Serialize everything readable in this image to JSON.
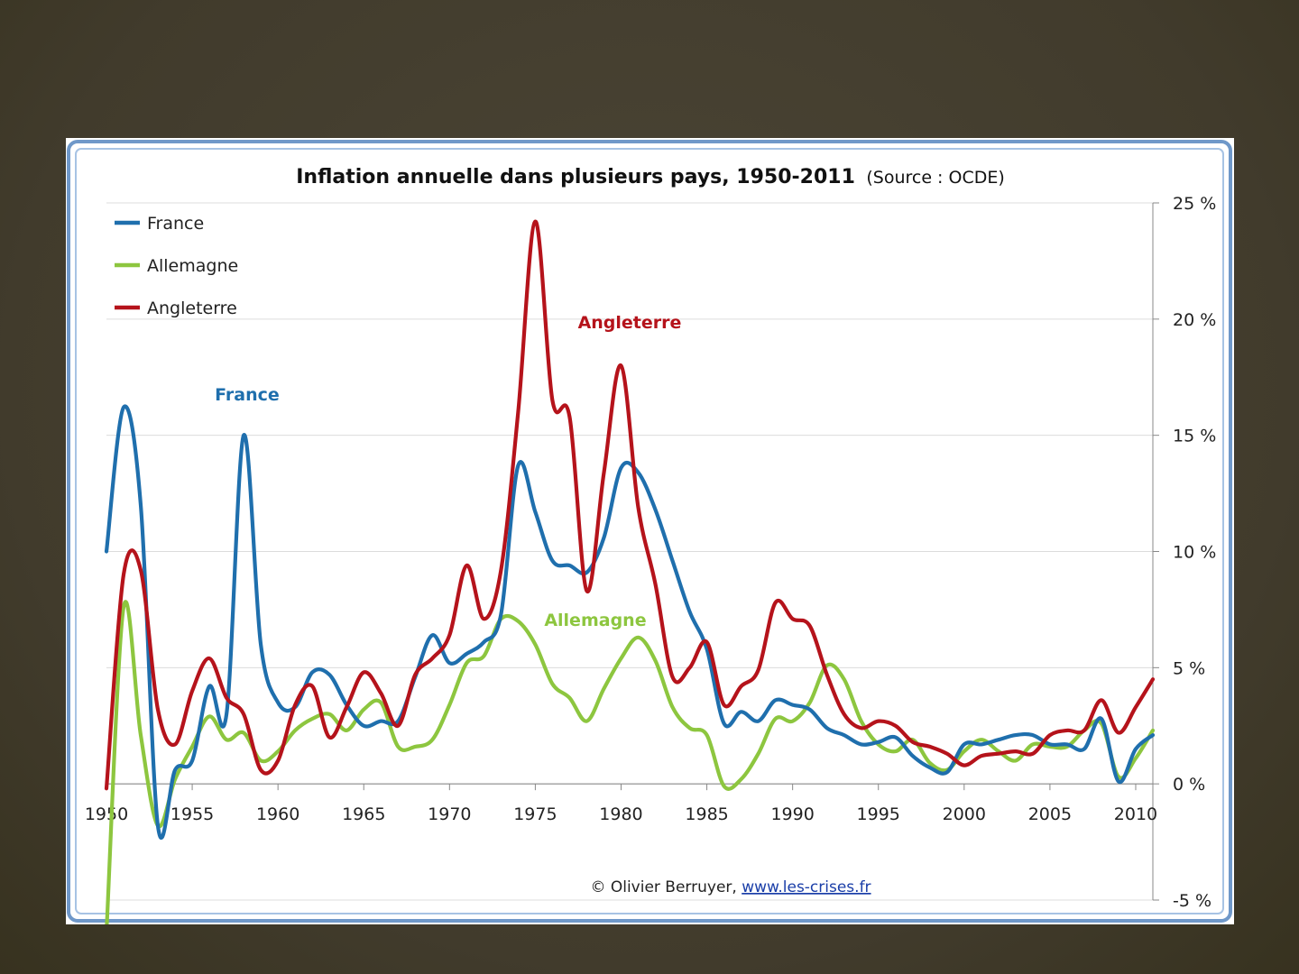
{
  "chart_data": {
    "type": "line",
    "title": "Inflation annuelle dans plusieurs pays, 1950-2011",
    "subtitle": "(Source : OCDE)",
    "xlim": [
      1950,
      2011
    ],
    "ylim": [
      -5,
      25
    ],
    "x_ticks": [
      "1950",
      "1955",
      "1960",
      "1965",
      "1970",
      "1975",
      "1980",
      "1985",
      "1990",
      "1995",
      "2000",
      "2005",
      "2010"
    ],
    "y_ticks": [
      {
        "value": 25,
        "label": "25 %"
      },
      {
        "value": 20,
        "label": "20 %"
      },
      {
        "value": 15,
        "label": "15 %"
      },
      {
        "value": 10,
        "label": "10 %"
      },
      {
        "value": 5,
        "label": "5 %"
      },
      {
        "value": 0,
        "label": "0 %"
      },
      {
        "value": -5,
        "label": "-5 %"
      }
    ],
    "grid": true,
    "legend_position": "top-left",
    "x": [
      1950,
      1951,
      1952,
      1953,
      1954,
      1955,
      1956,
      1957,
      1958,
      1959,
      1960,
      1961,
      1962,
      1963,
      1964,
      1965,
      1966,
      1967,
      1968,
      1969,
      1970,
      1971,
      1972,
      1973,
      1974,
      1975,
      1976,
      1977,
      1978,
      1979,
      1980,
      1981,
      1982,
      1983,
      1984,
      1985,
      1986,
      1987,
      1988,
      1989,
      1990,
      1991,
      1992,
      1993,
      1994,
      1995,
      1996,
      1997,
      1998,
      1999,
      2000,
      2001,
      2002,
      2003,
      2004,
      2005,
      2006,
      2007,
      2008,
      2009,
      2010,
      2011
    ],
    "series": [
      {
        "name": "France",
        "color": "#1f6fad",
        "values": [
          10.0,
          16.2,
          12.0,
          -1.8,
          0.6,
          1.0,
          4.2,
          3.0,
          15.0,
          6.0,
          3.5,
          3.3,
          4.8,
          4.7,
          3.4,
          2.5,
          2.7,
          2.7,
          4.6,
          6.4,
          5.2,
          5.6,
          6.1,
          7.3,
          13.7,
          11.7,
          9.6,
          9.4,
          9.1,
          10.6,
          13.6,
          13.4,
          11.8,
          9.6,
          7.4,
          5.8,
          2.6,
          3.1,
          2.7,
          3.6,
          3.4,
          3.2,
          2.4,
          2.1,
          1.7,
          1.8,
          2.0,
          1.2,
          0.7,
          0.5,
          1.7,
          1.7,
          1.9,
          2.1,
          2.1,
          1.7,
          1.7,
          1.5,
          2.8,
          0.1,
          1.5,
          2.1
        ]
      },
      {
        "name": "Allemagne",
        "color": "#8dc63f",
        "values": [
          -6.4,
          7.6,
          2.1,
          -1.8,
          0.2,
          1.6,
          2.9,
          1.9,
          2.2,
          1.0,
          1.4,
          2.3,
          2.8,
          3.0,
          2.3,
          3.2,
          3.5,
          1.6,
          1.6,
          1.9,
          3.4,
          5.2,
          5.5,
          7.1,
          7.0,
          6.0,
          4.3,
          3.7,
          2.7,
          4.1,
          5.4,
          6.3,
          5.3,
          3.3,
          2.4,
          2.1,
          -0.1,
          0.2,
          1.3,
          2.8,
          2.7,
          3.5,
          5.1,
          4.5,
          2.7,
          1.7,
          1.4,
          1.9,
          0.9,
          0.6,
          1.4,
          1.9,
          1.4,
          1.0,
          1.7,
          1.6,
          1.6,
          2.3,
          2.6,
          0.3,
          1.1,
          2.3
        ]
      },
      {
        "name": "Angleterre",
        "color": "#b5131b",
        "values": [
          -0.2,
          9.0,
          9.2,
          3.2,
          1.7,
          4.0,
          5.4,
          3.7,
          3.0,
          0.6,
          1.0,
          3.4,
          4.2,
          2.0,
          3.3,
          4.8,
          3.9,
          2.5,
          4.7,
          5.4,
          6.4,
          9.4,
          7.1,
          9.2,
          16.0,
          24.2,
          16.5,
          15.8,
          8.3,
          13.4,
          18.0,
          11.9,
          8.6,
          4.6,
          5.0,
          6.1,
          3.4,
          4.2,
          4.9,
          7.8,
          7.1,
          6.8,
          4.7,
          3.0,
          2.4,
          2.7,
          2.5,
          1.8,
          1.6,
          1.3,
          0.8,
          1.2,
          1.3,
          1.4,
          1.3,
          2.1,
          2.3,
          2.3,
          3.6,
          2.2,
          3.3,
          4.5
        ]
      }
    ],
    "annotations": [
      {
        "text": "France",
        "series": "France",
        "at_x": 1958.2,
        "at_y": 16.5
      },
      {
        "text": "Angleterre",
        "series": "Angleterre",
        "at_x": 1980.5,
        "at_y": 19.6
      },
      {
        "text": "Allemagne",
        "series": "Allemagne",
        "at_x": 1978.5,
        "at_y": 6.8
      }
    ]
  },
  "footer": {
    "author": "© Olivier Berruyer, ",
    "link": "www.les-crises.fr"
  }
}
